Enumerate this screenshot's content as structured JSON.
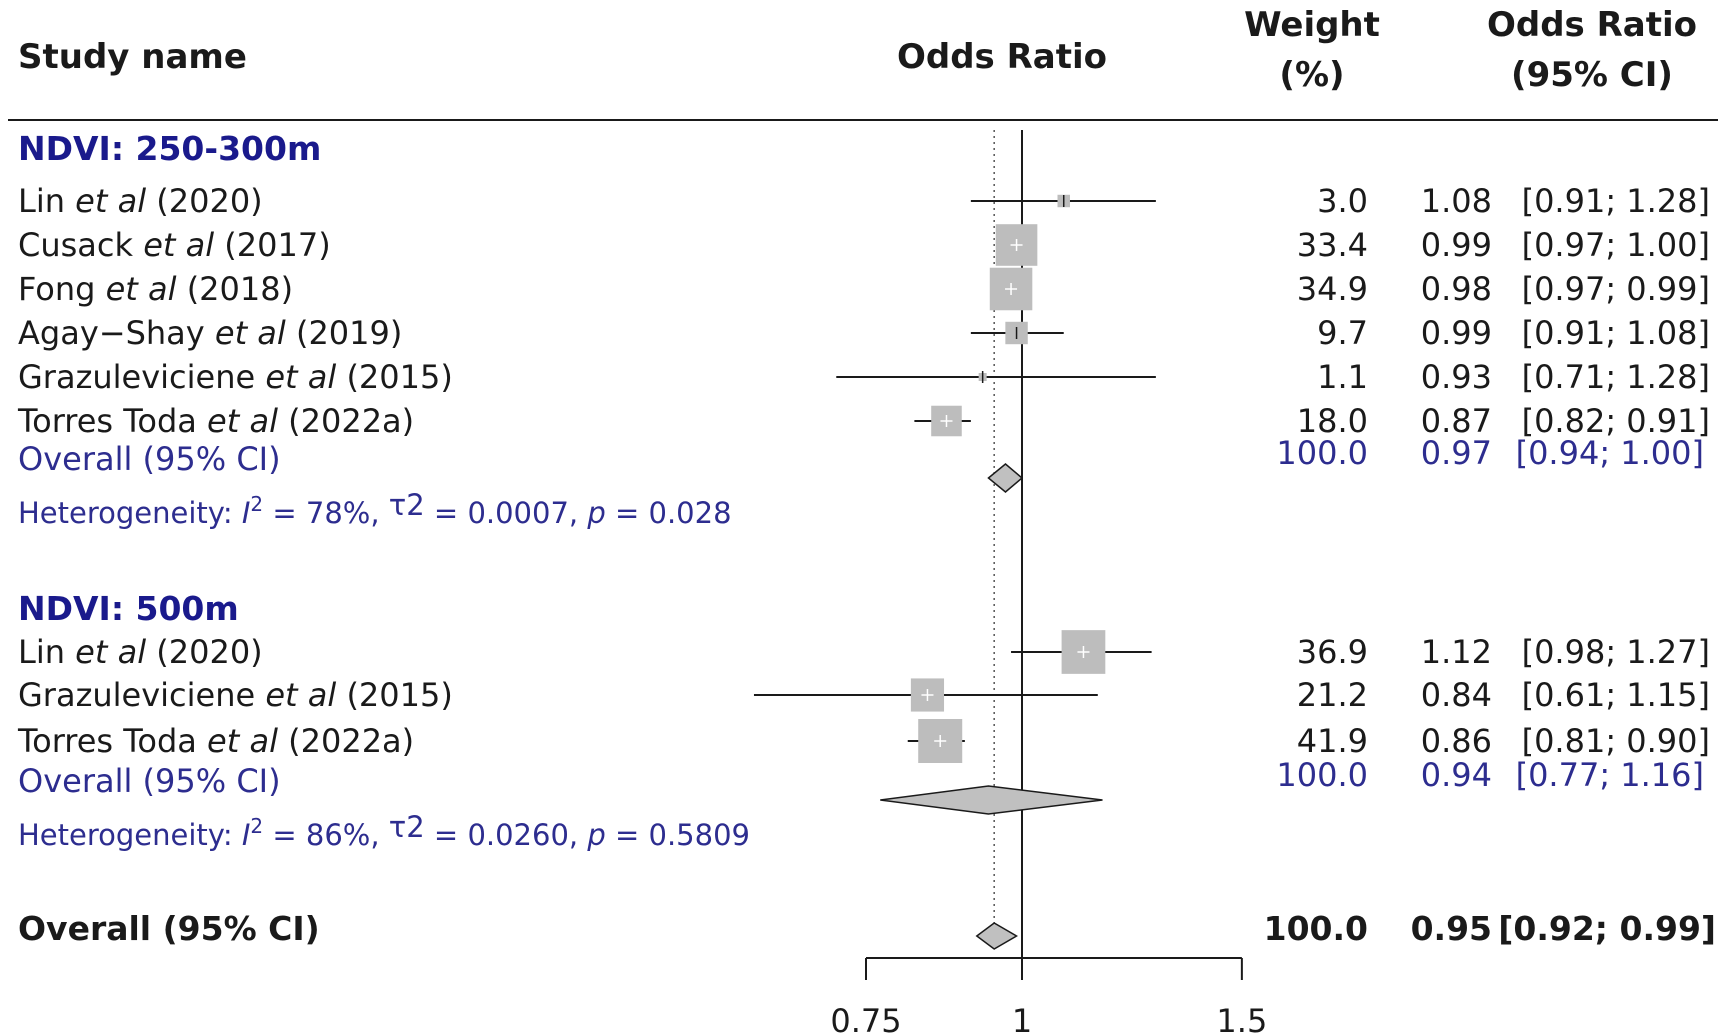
{
  "headers": {
    "study": "Study name",
    "plot": "Odds Ratio",
    "weight_l1": "Weight",
    "weight_l2": "(%)",
    "or_l1": "Odds Ratio",
    "or_l2": "(95% CI)"
  },
  "chart_data": {
    "type": "forest",
    "x_label": "Odds Ratio",
    "x_scale": "log",
    "x_ticks": [
      {
        "value": 0.75,
        "label": "0.75"
      },
      {
        "value": 1,
        "label": "1"
      },
      {
        "value": 1.5,
        "label": "1.5"
      }
    ],
    "reference_line": 1,
    "overall_dotted_line": 0.95,
    "colors": {
      "group": "#1a1a8c",
      "summary": "#2d2d8f",
      "box": "#bdbdbd",
      "diamond": "#c0c0c0",
      "text": "#1a1a1a"
    },
    "groups": [
      {
        "title": "NDVI: 250-300m",
        "studies": [
          {
            "author": "Lin",
            "etal": "et al",
            "year": "(2020)",
            "weight": "3.0",
            "or_text": "1.08",
            "ci_text": "[0.91; 1.28]",
            "or": 1.08,
            "lo": 0.91,
            "hi": 1.28
          },
          {
            "author": "Cusack",
            "etal": "et al",
            "year": "(2017)",
            "weight": "33.4",
            "or_text": "0.99",
            "ci_text": "[0.97; 1.00]",
            "or": 0.99,
            "lo": 0.97,
            "hi": 1.0
          },
          {
            "author": "Fong",
            "etal": "et al",
            "year": "(2018)",
            "weight": "34.9",
            "or_text": "0.98",
            "ci_text": "[0.97; 0.99]",
            "or": 0.98,
            "lo": 0.97,
            "hi": 0.99
          },
          {
            "author": "Agay−Shay",
            "etal": "et al",
            "year": "(2019)",
            "weight": "9.7",
            "or_text": "0.99",
            "ci_text": "[0.91; 1.08]",
            "or": 0.99,
            "lo": 0.91,
            "hi": 1.08
          },
          {
            "author": "Grazuleviciene",
            "etal": "et al",
            "year": "(2015)",
            "weight": "1.1",
            "or_text": "0.93",
            "ci_text": "[0.71; 1.28]",
            "or": 0.93,
            "lo": 0.71,
            "hi": 1.28
          },
          {
            "author": "Torres Toda",
            "etal": "et al",
            "year": "(2022a)",
            "weight": "18.0",
            "or_text": "0.87",
            "ci_text": "[0.82; 0.91]",
            "or": 0.87,
            "lo": 0.82,
            "hi": 0.91
          }
        ],
        "overall": {
          "label": "Overall (95% CI)",
          "weight": "100.0",
          "or_text": "0.97",
          "ci_text": "[0.94; 1.00]",
          "or": 0.97,
          "lo": 0.94,
          "hi": 1.0
        },
        "heterogeneity": {
          "prefix": "Heterogeneity: ",
          "i_symbol": "I",
          "sup": "2",
          "i2_text": " = 78%,  ",
          "tau_symbol": "τ",
          "tau_sup": "2",
          "tau_text": " = 0.0007, ",
          "p_symbol": "p",
          "p_text": " = 0.028"
        }
      },
      {
        "title": "NDVI: 500m",
        "studies": [
          {
            "author": "Lin",
            "etal": "et al",
            "year": "(2020)",
            "weight": "36.9",
            "or_text": "1.12",
            "ci_text": "[0.98; 1.27]",
            "or": 1.12,
            "lo": 0.98,
            "hi": 1.27
          },
          {
            "author": "Grazuleviciene",
            "etal": "et al",
            "year": "(2015)",
            "weight": "21.2",
            "or_text": "0.84",
            "ci_text": "[0.61; 1.15]",
            "or": 0.84,
            "lo": 0.61,
            "hi": 1.15
          },
          {
            "author": "Torres Toda",
            "etal": "et al",
            "year": "(2022a)",
            "weight": "41.9",
            "or_text": "0.86",
            "ci_text": "[0.81; 0.90]",
            "or": 0.86,
            "lo": 0.81,
            "hi": 0.9
          }
        ],
        "overall": {
          "label": "Overall (95% CI)",
          "weight": "100.0",
          "or_text": "0.94",
          "ci_text": "[0.77; 1.16]",
          "or": 0.94,
          "lo": 0.77,
          "hi": 1.16
        },
        "heterogeneity": {
          "prefix": "Heterogeneity: ",
          "i_symbol": "I",
          "sup": "2",
          "i2_text": " = 86%,  ",
          "tau_symbol": "τ",
          "tau_sup": "2",
          "tau_text": " = 0.0260, ",
          "p_symbol": "p",
          "p_text": " = 0.5809"
        }
      }
    ],
    "overall": {
      "label": "Overall (95% CI)",
      "weight": "100.0",
      "or_text": "0.95",
      "ci_text": "[0.92; 0.99]",
      "or": 0.95,
      "lo": 0.92,
      "hi": 0.99
    }
  }
}
